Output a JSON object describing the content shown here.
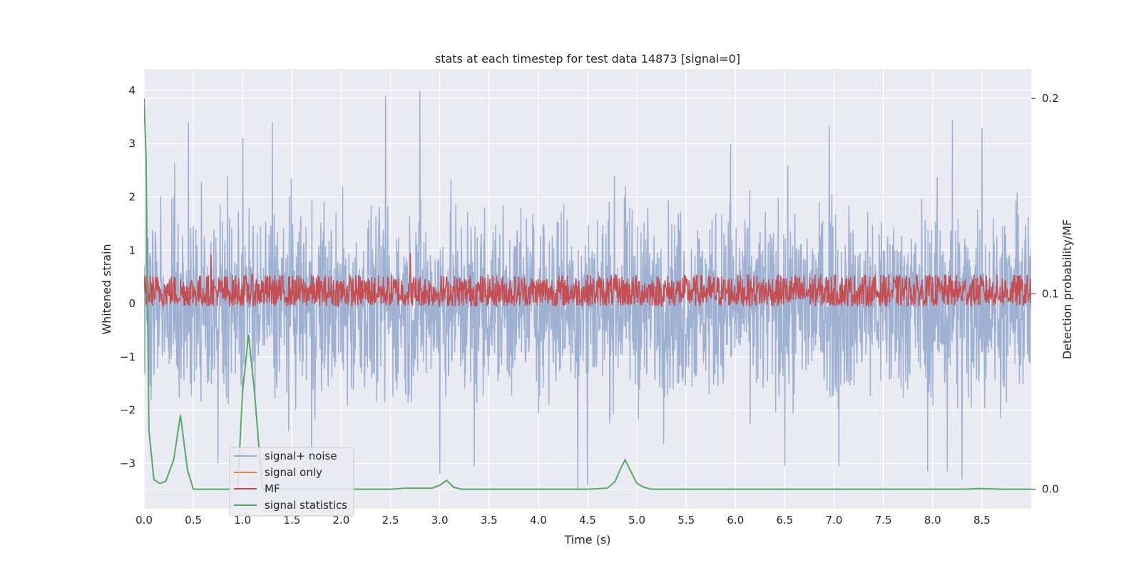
{
  "chart_data": {
    "type": "line",
    "title": "stats at each timestep for test data 14873 [signal=0]",
    "xlabel": "Time (s)",
    "ylabel": "Whitened strain",
    "y2label": "Detection probability/MF",
    "xlim": [
      0,
      9.0
    ],
    "ylim": [
      -3.85,
      4.4
    ],
    "y2lim": [
      -0.01,
      0.215
    ],
    "xticks": [
      0.0,
      0.5,
      1.0,
      1.5,
      2.0,
      2.5,
      3.0,
      3.5,
      4.0,
      4.5,
      5.0,
      5.5,
      6.0,
      6.5,
      7.0,
      7.5,
      8.0,
      8.5
    ],
    "xtick_labels": [
      "0.0",
      "0.5",
      "1.0",
      "1.5",
      "2.0",
      "2.5",
      "3.0",
      "3.5",
      "4.0",
      "4.5",
      "5.0",
      "5.5",
      "6.0",
      "6.5",
      "7.0",
      "7.5",
      "8.0",
      "8.5"
    ],
    "yticks": [
      4,
      3,
      2,
      1,
      0,
      -1,
      -2,
      -3
    ],
    "ytick_labels": [
      "4",
      "3",
      "2",
      "1",
      "0",
      "−1",
      "−2",
      "−3"
    ],
    "y2ticks": [
      0.2,
      0.1,
      0.0
    ],
    "y2tick_labels": [
      "0.2",
      "0.1",
      "0.0"
    ],
    "grid": true,
    "legend_position": "lower-left",
    "series": [
      {
        "name": "signal+ noise",
        "axis": "left",
        "color": "#9aaed0",
        "style": "noise",
        "amplitude": 1.3,
        "peaks": [
          {
            "x": 2.45,
            "y": 3.9
          },
          {
            "x": 2.8,
            "y": 4.0
          },
          {
            "x": 0.45,
            "y": 3.4
          },
          {
            "x": 1.0,
            "y": 3.1
          },
          {
            "x": 1.3,
            "y": 3.4
          },
          {
            "x": 6.95,
            "y": 3.35
          },
          {
            "x": 8.2,
            "y": 3.45
          },
          {
            "x": 8.5,
            "y": 3.3
          },
          {
            "x": 5.95,
            "y": 3.0
          },
          {
            "x": 4.4,
            "y": -3.5
          },
          {
            "x": 4.5,
            "y": -3.4
          },
          {
            "x": 3.0,
            "y": -3.2
          },
          {
            "x": 3.35,
            "y": -3.05
          },
          {
            "x": 6.5,
            "y": -3.05
          },
          {
            "x": 7.05,
            "y": -3.05
          },
          {
            "x": 7.95,
            "y": -3.15
          },
          {
            "x": 8.15,
            "y": -3.15
          },
          {
            "x": 8.3,
            "y": -3.3
          },
          {
            "x": 1.7,
            "y": -3.2
          },
          {
            "x": 0.75,
            "y": -3.0
          }
        ]
      },
      {
        "name": "signal only",
        "axis": "left",
        "color": "#dd8452",
        "values": []
      },
      {
        "name": "MF",
        "axis": "left",
        "color": "#c44e52",
        "style": "noise-band",
        "low": -0.05,
        "high": 0.55,
        "peaks": [
          {
            "x": 0.68,
            "y": 0.92
          },
          {
            "x": 2.7,
            "y": 0.95
          }
        ]
      },
      {
        "name": "signal statistics",
        "axis": "right",
        "color": "#55a868",
        "x": [
          0.0,
          0.02,
          0.05,
          0.1,
          0.16,
          0.22,
          0.3,
          0.37,
          0.44,
          0.5,
          0.6,
          0.8,
          0.95,
          1.0,
          1.06,
          1.12,
          1.2,
          1.5,
          2.0,
          2.5,
          2.65,
          2.8,
          2.92,
          3.0,
          3.07,
          3.14,
          3.22,
          3.5,
          4.0,
          4.5,
          4.7,
          4.78,
          4.83,
          4.88,
          4.93,
          5.0,
          5.07,
          5.15,
          5.5,
          6.0,
          7.0,
          8.0,
          8.3,
          8.5,
          8.7,
          9.0
        ],
        "y": [
          0.2,
          0.17,
          0.03,
          0.005,
          0.003,
          0.004,
          0.015,
          0.038,
          0.01,
          0.0,
          0.0,
          0.0,
          0.0,
          0.05,
          0.079,
          0.05,
          0.0,
          0.0,
          0.0,
          0.0,
          0.0005,
          0.0005,
          0.0005,
          0.002,
          0.0045,
          0.001,
          0.0,
          0.0,
          0.0,
          0.0,
          0.0005,
          0.004,
          0.01,
          0.015,
          0.01,
          0.003,
          0.001,
          0.0,
          0.0,
          0.0,
          0.0,
          0.0,
          0.0,
          0.0003,
          0.0,
          0.0
        ]
      }
    ]
  }
}
